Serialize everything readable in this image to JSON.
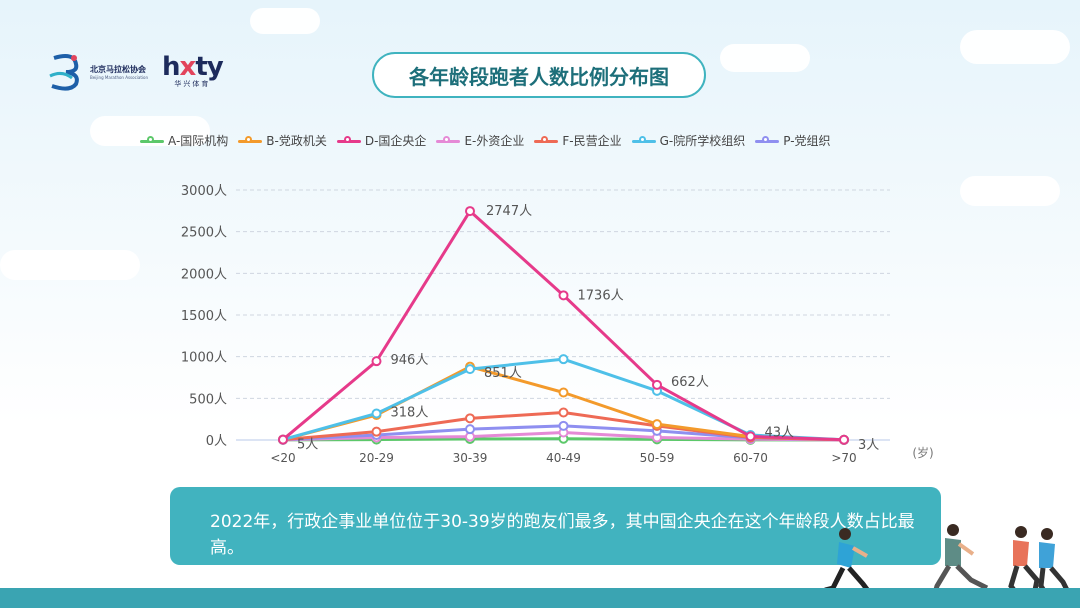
{
  "header": {
    "association_name": "北京马拉松协会",
    "association_name_en": "Beijing Marathon Association",
    "brand_left": "h",
    "brand_x": "x",
    "brand_right": "ty",
    "brand_sub": "华兴体育",
    "title": "各年龄段跑者人数比例分布图"
  },
  "summary": "2022年，行政企事业单位位于30-39岁的跑友们最多，其中国企央企在这个年龄段人数占比最高。",
  "chart_data": {
    "type": "line",
    "title": "各年龄段跑者人数比例分布图",
    "categories": [
      "<20",
      "20-29",
      "30-39",
      "40-49",
      "50-59",
      "60-70",
      ">70"
    ],
    "xlabel": "(岁)",
    "ylabel": "",
    "ylim": [
      0,
      3000
    ],
    "yticks": [
      0,
      500,
      1000,
      1500,
      2000,
      2500,
      3000
    ],
    "ytick_labels": [
      "0人",
      "500人",
      "1000人",
      "1500人",
      "2000人",
      "2500人",
      "3000人"
    ],
    "legend_position": "top",
    "grid": true,
    "series": [
      {
        "name": "A-国际机构",
        "color": "#5cc86a",
        "values": [
          2,
          5,
          12,
          15,
          8,
          2,
          0
        ]
      },
      {
        "name": "B-党政机关",
        "color": "#f39a2b",
        "values": [
          5,
          300,
          880,
          570,
          190,
          40,
          3
        ]
      },
      {
        "name": "D-国企央企",
        "color": "#e63a8a",
        "values": [
          5,
          946,
          2747,
          1736,
          662,
          43,
          3
        ]
      },
      {
        "name": "E-外资企业",
        "color": "#e58ad6",
        "values": [
          2,
          30,
          40,
          90,
          30,
          10,
          0
        ]
      },
      {
        "name": "F-民营企业",
        "color": "#ee6a55",
        "values": [
          5,
          100,
          260,
          330,
          170,
          30,
          2
        ]
      },
      {
        "name": "G-院所学校组织",
        "color": "#4ec0e8",
        "values": [
          5,
          318,
          851,
          970,
          590,
          60,
          3
        ]
      },
      {
        "name": "P-党组织",
        "color": "#8f8ff0",
        "values": [
          3,
          60,
          130,
          170,
          110,
          25,
          1
        ]
      }
    ],
    "annotations": [
      {
        "series": "D-国企央企",
        "category": "<20",
        "label": "5人"
      },
      {
        "series": "D-国企央企",
        "category": "20-29",
        "label": "946人"
      },
      {
        "series": "D-国企央企",
        "category": "30-39",
        "label": "2747人"
      },
      {
        "series": "D-国企央企",
        "category": "40-49",
        "label": "1736人"
      },
      {
        "series": "D-国企央企",
        "category": "50-59",
        "label": "662人"
      },
      {
        "series": "D-国企央企",
        "category": "60-70",
        "label": "43人"
      },
      {
        "series": "D-国企央企",
        "category": ">70",
        "label": "3人"
      },
      {
        "series": "G-院所学校组织",
        "category": "20-29",
        "label": "318人"
      },
      {
        "series": "G-院所学校组织",
        "category": "30-39",
        "label": "851人"
      }
    ]
  }
}
